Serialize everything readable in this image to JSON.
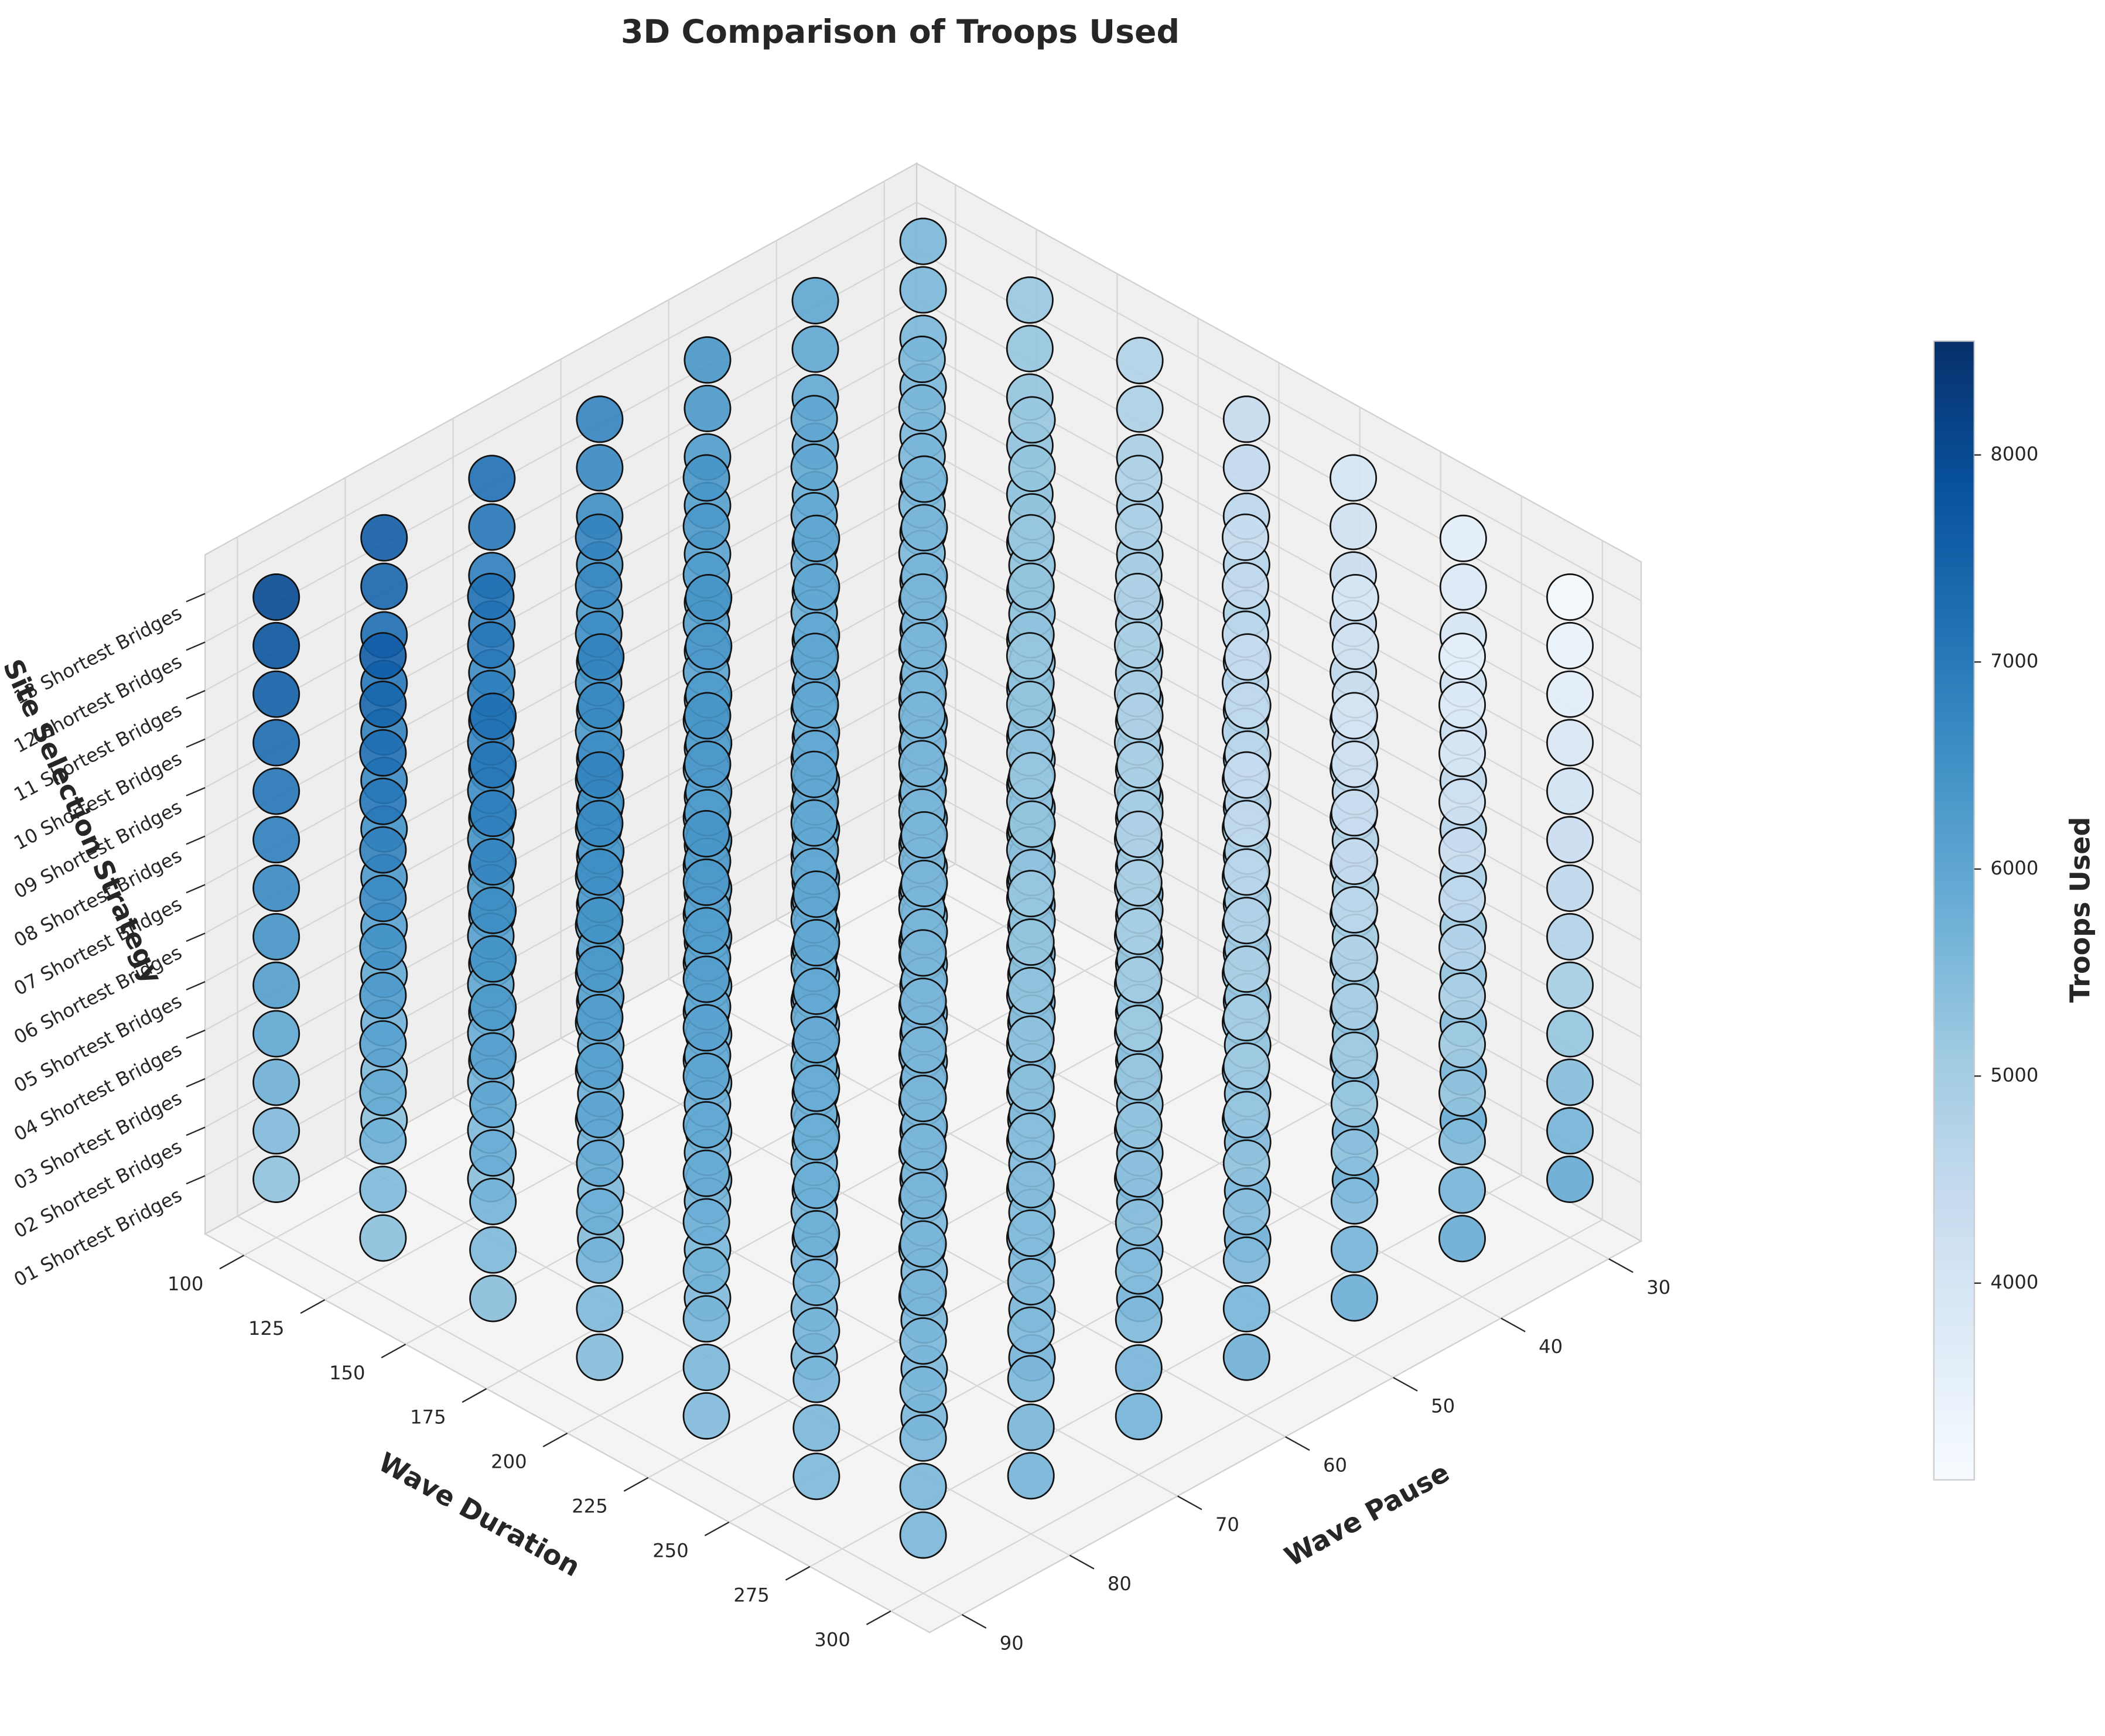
{
  "chart_data": {
    "type": "scatter3d",
    "title": "3D Comparison of Troops Used",
    "xlabel": "Wave Duration",
    "ylabel": "Wave Pause",
    "zlabel": "Site Selection Strategy",
    "colorbar_label": "Troops Used",
    "x": [
      100,
      133,
      167,
      200,
      233,
      267,
      300
    ],
    "y": [
      30,
      40,
      50,
      60,
      70,
      80,
      90
    ],
    "z_categories": [
      "01 Shortest Bridges",
      "02 Shortest Bridges",
      "03 Shortest Bridges",
      "04 Shortest Bridges",
      "05 Shortest Bridges",
      "06 Shortest Bridges",
      "07 Shortest Bridges",
      "08 Shortest Bridges",
      "09 Shortest Bridges",
      "10 Shortest Bridges",
      "11 Shortest Bridges",
      "12 Shortest Bridges",
      "13 Shortest Bridges"
    ],
    "values": [
      [
        [
          5600,
          5600,
          5600,
          5600,
          5600,
          5600,
          5600,
          5600,
          5600,
          5600,
          5600,
          5600,
          5600
        ],
        [
          5550,
          5590,
          5630,
          5660,
          5700,
          5740,
          5780,
          5810,
          5850,
          5890,
          5930,
          5960,
          6000
        ],
        [
          5500,
          5580,
          5650,
          5730,
          5800,
          5880,
          5950,
          6030,
          6100,
          6180,
          6250,
          6330,
          6400
        ],
        [
          5450,
          5560,
          5680,
          5790,
          5900,
          6010,
          6130,
          6240,
          6350,
          6460,
          6580,
          6690,
          6800
        ],
        [
          5400,
          5550,
          5700,
          5850,
          6000,
          6150,
          6300,
          6450,
          6600,
          6750,
          6900,
          7050,
          7200
        ],
        [
          5350,
          5540,
          5730,
          5910,
          6100,
          6290,
          6480,
          6660,
          6850,
          7040,
          7230,
          7410,
          7600
        ],
        [
          5300,
          5530,
          5750,
          5980,
          6200,
          6430,
          6650,
          6880,
          7100,
          7330,
          7550,
          7780,
          8000
        ]
      ],
      [
        [
          5650,
          5610,
          5580,
          5540,
          5500,
          5460,
          5430,
          5390,
          5350,
          5310,
          5280,
          5240,
          5200
        ],
        [
          5600,
          5600,
          5600,
          5600,
          5600,
          5600,
          5600,
          5600,
          5600,
          5600,
          5600,
          5600,
          5600
        ],
        [
          5550,
          5590,
          5630,
          5660,
          5700,
          5740,
          5780,
          5810,
          5850,
          5890,
          5930,
          5960,
          6000
        ],
        [
          5500,
          5580,
          5650,
          5730,
          5800,
          5880,
          5950,
          6030,
          6100,
          6180,
          6250,
          6330,
          6400
        ],
        [
          5450,
          5560,
          5680,
          5790,
          5900,
          6010,
          6130,
          6240,
          6350,
          6460,
          6580,
          6690,
          6800
        ],
        [
          5400,
          5550,
          5700,
          5850,
          6000,
          6150,
          6300,
          6450,
          6600,
          6750,
          6900,
          7050,
          7200
        ],
        [
          5350,
          5540,
          5730,
          5910,
          6100,
          6290,
          6480,
          6660,
          6850,
          7040,
          7230,
          7410,
          7600
        ]
      ],
      [
        [
          5700,
          5630,
          5550,
          5480,
          5400,
          5330,
          5250,
          5180,
          5100,
          5030,
          4950,
          4880,
          4800
        ],
        [
          5650,
          5610,
          5580,
          5540,
          5500,
          5460,
          5430,
          5390,
          5350,
          5310,
          5280,
          5240,
          5200
        ],
        [
          5600,
          5600,
          5600,
          5600,
          5600,
          5600,
          5600,
          5600,
          5600,
          5600,
          5600,
          5600,
          5600
        ],
        [
          5550,
          5590,
          5630,
          5660,
          5700,
          5740,
          5780,
          5810,
          5850,
          5890,
          5930,
          5960,
          6000
        ],
        [
          5500,
          5580,
          5650,
          5730,
          5800,
          5880,
          5950,
          6030,
          6100,
          6180,
          6250,
          6330,
          6400
        ],
        [
          5450,
          5560,
          5680,
          5790,
          5900,
          6010,
          6130,
          6240,
          6350,
          6460,
          6580,
          6690,
          6800
        ],
        [
          5400,
          5550,
          5700,
          5850,
          6000,
          6150,
          6300,
          6450,
          6600,
          6750,
          6900,
          7050,
          7200
        ]
      ],
      [
        [
          5750,
          5640,
          5530,
          5410,
          5300,
          5190,
          5080,
          4960,
          4850,
          4740,
          4630,
          4510,
          4400
        ],
        [
          5700,
          5630,
          5550,
          5480,
          5400,
          5330,
          5250,
          5180,
          5100,
          5030,
          4950,
          4880,
          4800
        ],
        [
          5650,
          5610,
          5580,
          5540,
          5500,
          5460,
          5430,
          5390,
          5350,
          5310,
          5280,
          5240,
          5200
        ],
        [
          5600,
          5600,
          5600,
          5600,
          5600,
          5600,
          5600,
          5600,
          5600,
          5600,
          5600,
          5600,
          5600
        ],
        [
          5550,
          5590,
          5630,
          5660,
          5700,
          5740,
          5780,
          5810,
          5850,
          5890,
          5930,
          5960,
          6000
        ],
        [
          5500,
          5580,
          5650,
          5730,
          5800,
          5880,
          5950,
          6030,
          6100,
          6180,
          6250,
          6330,
          6400
        ],
        [
          5450,
          5560,
          5680,
          5790,
          5900,
          6010,
          6130,
          6240,
          6350,
          6460,
          6580,
          6690,
          6800
        ]
      ],
      [
        [
          5800,
          5650,
          5500,
          5350,
          5200,
          5050,
          4900,
          4750,
          4600,
          4450,
          4300,
          4150,
          4000
        ],
        [
          5750,
          5640,
          5530,
          5410,
          5300,
          5190,
          5080,
          4960,
          4850,
          4740,
          4630,
          4510,
          4400
        ],
        [
          5700,
          5630,
          5550,
          5480,
          5400,
          5330,
          5250,
          5180,
          5100,
          5030,
          4950,
          4880,
          4800
        ],
        [
          5650,
          5610,
          5580,
          5540,
          5500,
          5460,
          5430,
          5390,
          5350,
          5310,
          5280,
          5240,
          5200
        ],
        [
          5600,
          5600,
          5600,
          5600,
          5600,
          5600,
          5600,
          5600,
          5600,
          5600,
          5600,
          5600,
          5600
        ],
        [
          5550,
          5590,
          5630,
          5660,
          5700,
          5740,
          5780,
          5810,
          5850,
          5890,
          5930,
          5960,
          6000
        ],
        [
          5500,
          5580,
          5650,
          5730,
          5800,
          5880,
          5950,
          6030,
          6100,
          6180,
          6250,
          6330,
          6400
        ]
      ],
      [
        [
          5850,
          5660,
          5480,
          5290,
          5100,
          4910,
          4730,
          4540,
          4350,
          4160,
          3980,
          3790,
          3600
        ],
        [
          5800,
          5650,
          5500,
          5350,
          5200,
          5050,
          4900,
          4750,
          4600,
          4450,
          4300,
          4150,
          4000
        ],
        [
          5750,
          5640,
          5530,
          5410,
          5300,
          5190,
          5080,
          4960,
          4850,
          4740,
          4630,
          4510,
          4400
        ],
        [
          5700,
          5630,
          5550,
          5480,
          5400,
          5330,
          5250,
          5180,
          5100,
          5030,
          4950,
          4880,
          4800
        ],
        [
          5650,
          5610,
          5580,
          5540,
          5500,
          5460,
          5430,
          5390,
          5350,
          5310,
          5280,
          5240,
          5200
        ],
        [
          5600,
          5600,
          5600,
          5600,
          5600,
          5600,
          5600,
          5600,
          5600,
          5600,
          5600,
          5600,
          5600
        ],
        [
          5550,
          5590,
          5630,
          5660,
          5700,
          5740,
          5780,
          5810,
          5850,
          5890,
          5930,
          5960,
          6000
        ]
      ],
      [
        [
          5900,
          5680,
          5450,
          5230,
          5000,
          4780,
          4550,
          4330,
          4100,
          3880,
          3650,
          3430,
          3200
        ],
        [
          5850,
          5660,
          5480,
          5290,
          5100,
          4910,
          4730,
          4540,
          4350,
          4160,
          3980,
          3790,
          3600
        ],
        [
          5800,
          5650,
          5500,
          5350,
          5200,
          5050,
          4900,
          4750,
          4600,
          4450,
          4300,
          4150,
          4000
        ],
        [
          5750,
          5640,
          5530,
          5410,
          5300,
          5190,
          5080,
          4960,
          4850,
          4740,
          4630,
          4510,
          4400
        ],
        [
          5700,
          5630,
          5550,
          5480,
          5400,
          5330,
          5250,
          5180,
          5100,
          5030,
          4950,
          4880,
          4800
        ],
        [
          5650,
          5610,
          5580,
          5540,
          5500,
          5460,
          5430,
          5390,
          5350,
          5310,
          5280,
          5240,
          5200
        ],
        [
          5600,
          5600,
          5600,
          5600,
          5600,
          5600,
          5600,
          5600,
          5600,
          5600,
          5600,
          5600,
          5600
        ]
      ]
    ],
    "xlim": [
      88,
      312
    ],
    "ylim": [
      27,
      93
    ],
    "xticks": [
      100,
      125,
      150,
      175,
      200,
      225,
      250,
      275,
      300
    ],
    "yticks": [
      30,
      40,
      50,
      60,
      70,
      80,
      90
    ],
    "clim": [
      3050,
      8550
    ],
    "cticks": [
      4000,
      5000,
      6000,
      7000,
      8000
    ],
    "colorscale": [
      "#f7fbff",
      "#deebf7",
      "#c6dbef",
      "#9ecae1",
      "#6baed6",
      "#4292c6",
      "#2171b5",
      "#08519c",
      "#08306b"
    ],
    "grid": true
  }
}
